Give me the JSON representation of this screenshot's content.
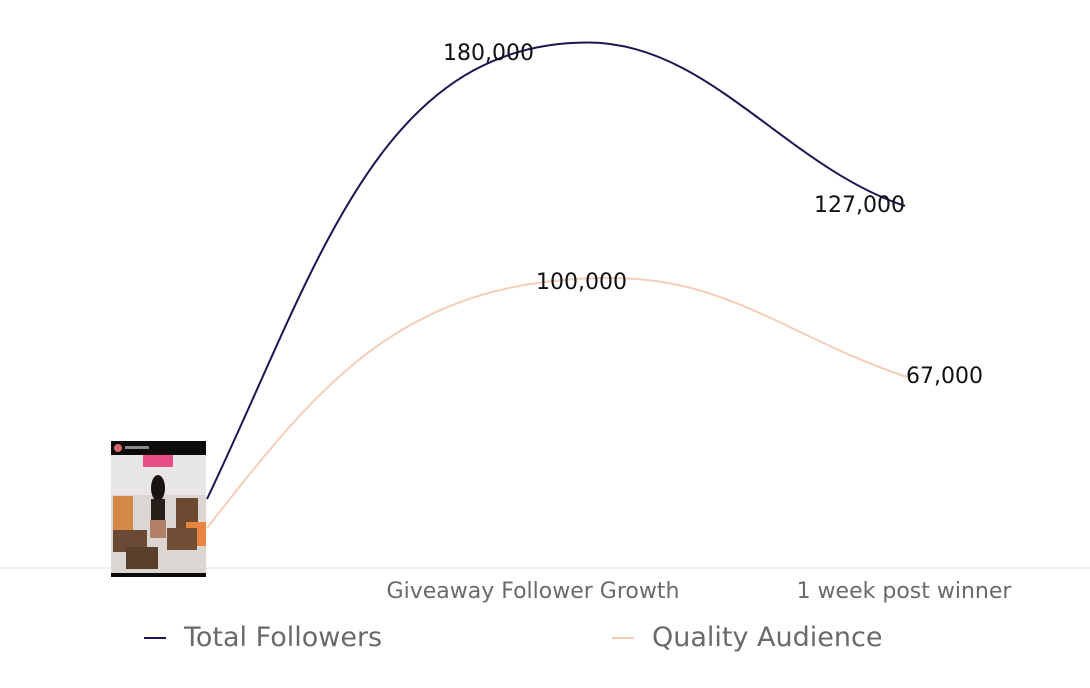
{
  "chart_data": {
    "type": "line",
    "categories": [
      "",
      "Giveaway Follower Growth",
      "1 week post winner"
    ],
    "series": [
      {
        "name": "Total Followers",
        "values": [
          null,
          180000,
          127000
        ],
        "labels": [
          "",
          "180,000",
          "127,000"
        ],
        "color": "#1c1654"
      },
      {
        "name": "Quality Audience",
        "values": [
          null,
          100000,
          67000
        ],
        "labels": [
          "",
          "100,000",
          "67,000"
        ],
        "color": "#f6cdb9"
      }
    ],
    "ylim": [
      0,
      190000
    ],
    "grid": false,
    "legend": "bottom",
    "first_category_marker": "photo-thumbnail",
    "title": "",
    "xlabel": "",
    "ylabel": ""
  },
  "legend": {
    "items": [
      {
        "label": "Total Followers",
        "color": "#1c1654"
      },
      {
        "label": "Quality Audience",
        "color": "#f6cdb9"
      }
    ]
  }
}
